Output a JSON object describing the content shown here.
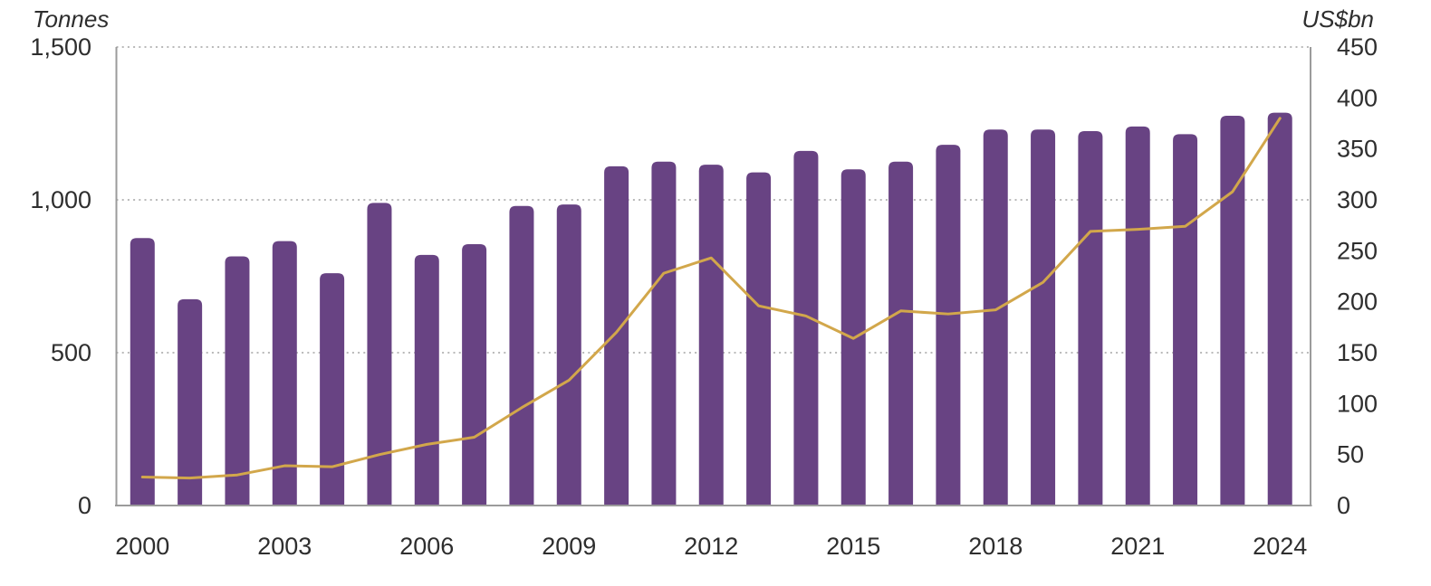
{
  "chart_data": {
    "type": "bar",
    "title": "",
    "legend": "none",
    "grid": "horizontal-dotted",
    "categories": [
      2000,
      2001,
      2002,
      2003,
      2004,
      2005,
      2006,
      2007,
      2008,
      2009,
      2010,
      2011,
      2012,
      2013,
      2014,
      2015,
      2016,
      2017,
      2018,
      2019,
      2020,
      2021,
      2022,
      2023,
      2024
    ],
    "series": [
      {
        "name": "Tonnes",
        "type": "bar",
        "axis": "left",
        "color": "#684383",
        "values": [
          875,
          675,
          815,
          865,
          760,
          990,
          820,
          855,
          980,
          985,
          1110,
          1125,
          1115,
          1090,
          1160,
          1100,
          1125,
          1180,
          1230,
          1230,
          1225,
          1240,
          1215,
          1275,
          1285
        ]
      },
      {
        "name": "US$bn",
        "type": "line",
        "axis": "right",
        "color": "#d2a74b",
        "values": [
          28,
          27,
          30,
          39,
          38,
          50,
          60,
          67,
          96,
          123,
          170,
          228,
          243,
          196,
          186,
          164,
          191,
          188,
          192,
          219,
          269,
          271,
          274,
          308,
          380
        ]
      }
    ],
    "left_axis": {
      "label": "Tonnes",
      "range": [
        0,
        1500
      ],
      "tick_values": [
        0,
        500,
        1000,
        1500
      ],
      "tick_labels": [
        "0",
        "500",
        "1,000",
        "1,500"
      ]
    },
    "right_axis": {
      "label": "US$bn",
      "range": [
        0,
        450
      ],
      "tick_values": [
        0,
        50,
        100,
        150,
        200,
        250,
        300,
        350,
        400,
        450
      ],
      "tick_labels": [
        "0",
        "50",
        "100",
        "150",
        "200",
        "250",
        "300",
        "350",
        "400",
        "450"
      ]
    },
    "x_axis": {
      "tick_years": [
        2000,
        2003,
        2006,
        2009,
        2012,
        2015,
        2018,
        2021,
        2024
      ]
    },
    "colors": {
      "bar": "#684383",
      "line": "#d2a74b",
      "axis_line": "#9b9b9b",
      "grid_dots": "#b9b9b9",
      "text": "#2e2e2e"
    }
  }
}
